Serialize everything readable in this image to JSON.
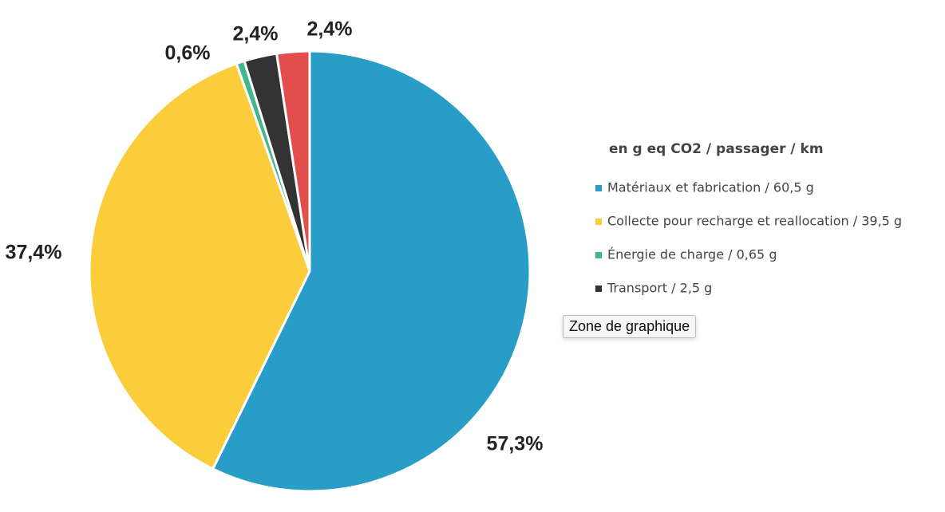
{
  "chart_data": {
    "type": "pie",
    "legend_title": "en g eq CO2 / passager / km",
    "categories": [
      "Matériaux et fabrication  / 60,5 g",
      "Collecte pour recharge et reallocation / 39,5 g",
      "Énergie de charge / 0,65 g",
      "Transport / 2,5 g",
      null
    ],
    "values": [
      57.3,
      37.4,
      0.6,
      2.4,
      2.4
    ],
    "value_labels": [
      "57,3%",
      "37,4%",
      "0,6%",
      "2,4%",
      "2,4%"
    ],
    "colors": [
      "#279dc8",
      "#fbcd3b",
      "#3fb88a",
      "#333333",
      "#e34d4d"
    ],
    "legend": "right",
    "tooltip": "Zone de graphique"
  }
}
